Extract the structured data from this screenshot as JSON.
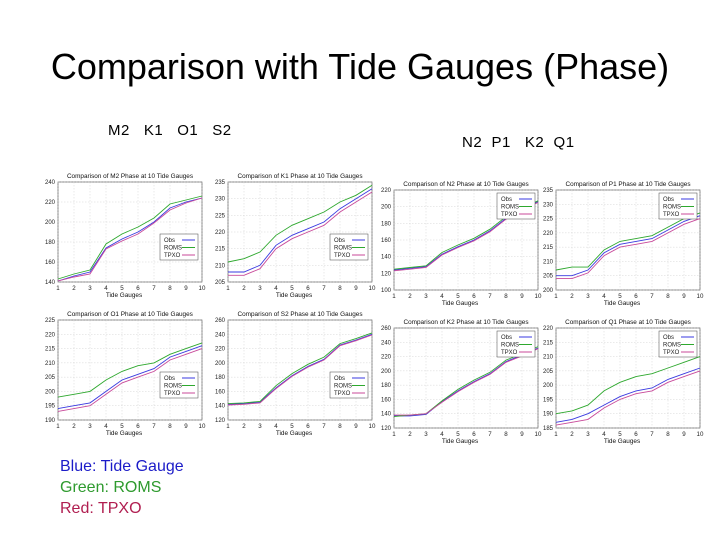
{
  "slide": {
    "title": "Comparison with Tide Gauges (Phase)",
    "group_left": "M2   K1   O1   S2",
    "group_right": "N2  P1   K2  Q1",
    "legend_key": [
      {
        "text": "Blue: Tide Gauge",
        "color": "#1c1cc8"
      },
      {
        "text": "Green: ROMS",
        "color": "#2e9a2e"
      },
      {
        "text": "Red: TPXO",
        "color": "#b01e50"
      }
    ]
  },
  "series_colors": {
    "Obs": "#3a3ae0",
    "ROMS": "#2ea82e",
    "TPXO": "#c84a9a"
  },
  "chart_data": [
    {
      "type": "line",
      "title": "Comparison of M2 Phase at 10 Tide Gauges",
      "xlabel": "Tide Gauges",
      "ylabel": "",
      "x": [
        1,
        2,
        3,
        4,
        5,
        6,
        7,
        8,
        9,
        10
      ],
      "xticks": [
        1,
        2,
        3,
        4,
        5,
        6,
        7,
        8,
        9,
        10
      ],
      "yticks": [
        140,
        160,
        180,
        200,
        220,
        240
      ],
      "ylim": [
        140,
        240
      ],
      "legend": "center-right",
      "grid": true,
      "series": [
        {
          "name": "Obs",
          "values": [
            141,
            146,
            150,
            174,
            183,
            190,
            200,
            214,
            220,
            224
          ]
        },
        {
          "name": "ROMS",
          "values": [
            143,
            148,
            152,
            178,
            188,
            195,
            204,
            218,
            222,
            226
          ]
        },
        {
          "name": "TPXO",
          "values": [
            141,
            145,
            148,
            173,
            181,
            188,
            199,
            212,
            219,
            224
          ]
        }
      ]
    },
    {
      "type": "line",
      "title": "Comparison of K1 Phase at 10 Tide Gauges",
      "xlabel": "Tide Gauges",
      "ylabel": "",
      "x": [
        1,
        2,
        3,
        4,
        5,
        6,
        7,
        8,
        9,
        10
      ],
      "xticks": [
        1,
        2,
        3,
        4,
        5,
        6,
        7,
        8,
        9,
        10
      ],
      "yticks": [
        205,
        210,
        215,
        220,
        225,
        230,
        235
      ],
      "ylim": [
        205,
        235
      ],
      "legend": "center-right",
      "grid": true,
      "series": [
        {
          "name": "Obs",
          "values": [
            208,
            208,
            210,
            216,
            219,
            221,
            223,
            227,
            230,
            233
          ]
        },
        {
          "name": "ROMS",
          "values": [
            211,
            212,
            214,
            219,
            222,
            224,
            226,
            229,
            231,
            234
          ]
        },
        {
          "name": "TPXO",
          "values": [
            207,
            207,
            209,
            215,
            218,
            220,
            222,
            226,
            229,
            232
          ]
        }
      ]
    },
    {
      "type": "line",
      "title": "Comparison of N2 Phase at 10 Tide Gauges",
      "xlabel": "Tide Gauges",
      "ylabel": "",
      "x": [
        1,
        2,
        3,
        4,
        5,
        6,
        7,
        8,
        9,
        10
      ],
      "xticks": [
        1,
        2,
        3,
        4,
        5,
        6,
        7,
        8,
        9,
        10
      ],
      "yticks": [
        100,
        120,
        140,
        160,
        180,
        200,
        220
      ],
      "ylim": [
        100,
        220
      ],
      "legend": "top-right",
      "grid": true,
      "series": [
        {
          "name": "Obs",
          "values": [
            124,
            126,
            128,
            143,
            152,
            160,
            171,
            186,
            197,
            206
          ]
        },
        {
          "name": "ROMS",
          "values": [
            125,
            127,
            129,
            145,
            154,
            162,
            173,
            188,
            198,
            207
          ]
        },
        {
          "name": "TPXO",
          "values": [
            123,
            125,
            127,
            142,
            151,
            159,
            170,
            185,
            196,
            205
          ]
        }
      ]
    },
    {
      "type": "line",
      "title": "Comparison of P1 Phase at 10 Tide Gauges",
      "xlabel": "Tide Gauges",
      "ylabel": "",
      "x": [
        1,
        2,
        3,
        4,
        5,
        6,
        7,
        8,
        9,
        10
      ],
      "xticks": [
        1,
        2,
        3,
        4,
        5,
        6,
        7,
        8,
        9,
        10
      ],
      "yticks": [
        200,
        205,
        210,
        215,
        220,
        225,
        230,
        235
      ],
      "ylim": [
        200,
        235
      ],
      "legend": "top-right",
      "grid": true,
      "series": [
        {
          "name": "Obs",
          "values": [
            205,
            205,
            207,
            213,
            216,
            217,
            218,
            221,
            224,
            226
          ]
        },
        {
          "name": "ROMS",
          "values": [
            207,
            208,
            208,
            214,
            217,
            218,
            219,
            222,
            225,
            227
          ]
        },
        {
          "name": "TPXO",
          "values": [
            204,
            204,
            206,
            212,
            215,
            216,
            217,
            220,
            223,
            225
          ]
        }
      ]
    },
    {
      "type": "line",
      "title": "Comparison of O1 Phase at 10 Tide Gauges",
      "xlabel": "Tide Gauges",
      "ylabel": "",
      "x": [
        1,
        2,
        3,
        4,
        5,
        6,
        7,
        8,
        9,
        10
      ],
      "xticks": [
        1,
        2,
        3,
        4,
        5,
        6,
        7,
        8,
        9,
        10
      ],
      "yticks": [
        190,
        195,
        200,
        205,
        210,
        215,
        220,
        225
      ],
      "ylim": [
        190,
        225
      ],
      "legend": "center-right",
      "grid": true,
      "series": [
        {
          "name": "Obs",
          "values": [
            194,
            195,
            196,
            200,
            204,
            206,
            208,
            212,
            214,
            216
          ]
        },
        {
          "name": "ROMS",
          "values": [
            198,
            199,
            200,
            204,
            207,
            209,
            210,
            213,
            215,
            217
          ]
        },
        {
          "name": "TPXO",
          "values": [
            193,
            194,
            195,
            199,
            203,
            205,
            207,
            211,
            213,
            215
          ]
        }
      ]
    },
    {
      "type": "line",
      "title": "Comparison of S2 Phase at 10 Tide Gauges",
      "xlabel": "Tide Gauges",
      "ylabel": "",
      "x": [
        1,
        2,
        3,
        4,
        5,
        6,
        7,
        8,
        9,
        10
      ],
      "xticks": [
        1,
        2,
        3,
        4,
        5,
        6,
        7,
        8,
        9,
        10
      ],
      "yticks": [
        120,
        140,
        160,
        180,
        200,
        220,
        240,
        260
      ],
      "ylim": [
        120,
        260
      ],
      "legend": "center-right",
      "grid": true,
      "series": [
        {
          "name": "Obs",
          "values": [
            142,
            143,
            145,
            165,
            182,
            195,
            205,
            225,
            232,
            240
          ]
        },
        {
          "name": "ROMS",
          "values": [
            143,
            144,
            146,
            168,
            185,
            198,
            208,
            227,
            234,
            242
          ]
        },
        {
          "name": "TPXO",
          "values": [
            141,
            142,
            144,
            164,
            181,
            194,
            204,
            224,
            231,
            239
          ]
        }
      ]
    },
    {
      "type": "line",
      "title": "Comparison of K2 Phase at 10 Tide Gauges",
      "xlabel": "Tide Gauges",
      "ylabel": "",
      "x": [
        1,
        2,
        3,
        4,
        5,
        6,
        7,
        8,
        9,
        10
      ],
      "xticks": [
        1,
        2,
        3,
        4,
        5,
        6,
        7,
        8,
        9,
        10
      ],
      "yticks": [
        120,
        140,
        160,
        180,
        200,
        220,
        240,
        260
      ],
      "ylim": [
        120,
        260
      ],
      "legend": "top-right",
      "grid": true,
      "series": [
        {
          "name": "Obs",
          "values": [
            137,
            137,
            139,
            157,
            172,
            185,
            196,
            213,
            222,
            232
          ]
        },
        {
          "name": "ROMS",
          "values": [
            136,
            138,
            140,
            158,
            174,
            187,
            198,
            215,
            224,
            234
          ]
        },
        {
          "name": "TPXO",
          "values": [
            138,
            138,
            140,
            156,
            171,
            184,
            195,
            212,
            221,
            231
          ]
        }
      ]
    },
    {
      "type": "line",
      "title": "Comparison of Q1 Phase at 10 Tide Gauges",
      "xlabel": "Tide Gauges",
      "ylabel": "",
      "x": [
        1,
        2,
        3,
        4,
        5,
        6,
        7,
        8,
        9,
        10
      ],
      "xticks": [
        1,
        2,
        3,
        4,
        5,
        6,
        7,
        8,
        9,
        10
      ],
      "yticks": [
        185,
        190,
        195,
        200,
        205,
        210,
        215,
        220
      ],
      "ylim": [
        185,
        220
      ],
      "legend": "top-right",
      "grid": true,
      "series": [
        {
          "name": "Obs",
          "values": [
            187,
            188,
            190,
            193,
            196,
            198,
            199,
            202,
            204,
            206
          ]
        },
        {
          "name": "ROMS",
          "values": [
            190,
            191,
            193,
            198,
            201,
            203,
            204,
            206,
            208,
            210
          ]
        },
        {
          "name": "TPXO",
          "values": [
            186,
            187,
            188,
            192,
            195,
            197,
            198,
            201,
            203,
            205
          ]
        }
      ]
    }
  ]
}
